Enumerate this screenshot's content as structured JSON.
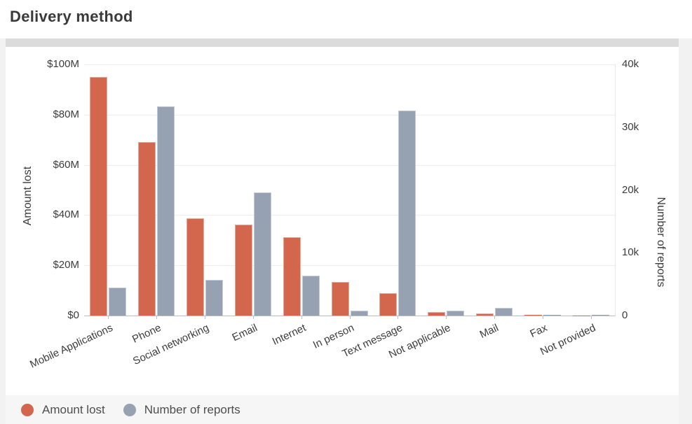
{
  "page": {
    "title": "Delivery method"
  },
  "legend": {
    "items": [
      {
        "label": "Amount lost",
        "color": "#d2674e"
      },
      {
        "label": "Number of reports",
        "color": "#96a2b2"
      }
    ]
  },
  "chart_data": {
    "type": "bar",
    "title": "Delivery method",
    "categories": [
      "Mobile Applications",
      "Phone",
      "Social networking",
      "Email",
      "Internet",
      "In person",
      "Text message",
      "Not applicable",
      "Mail",
      "Fax",
      "Not provided"
    ],
    "series": [
      {
        "name": "Amount lost",
        "axis": "left",
        "color": "#d2674e",
        "unit": "million USD",
        "values": [
          95,
          69,
          38.7,
          36.3,
          31.2,
          13.3,
          8.9,
          1.4,
          0.8,
          0.2,
          0.1
        ]
      },
      {
        "name": "Number of reports",
        "axis": "right",
        "color": "#96a2b2",
        "unit": "reports",
        "values": [
          4500,
          33300,
          5700,
          19600,
          6400,
          800,
          32600,
          800,
          1200,
          60,
          60
        ]
      }
    ],
    "left_axis": {
      "label": "Amount lost",
      "ticks": [
        "$100M",
        "$80M",
        "$60M",
        "$40M",
        "$20M",
        "$0"
      ],
      "tick_values": [
        100,
        80,
        60,
        40,
        20,
        0
      ],
      "max": 100
    },
    "right_axis": {
      "label": "Number of reports",
      "ticks": [
        "40k",
        "30k",
        "20k",
        "10k",
        "0"
      ],
      "tick_values": [
        40000,
        30000,
        20000,
        10000,
        0
      ],
      "max": 40000
    },
    "grid": true,
    "legend_position": "bottom-left"
  }
}
